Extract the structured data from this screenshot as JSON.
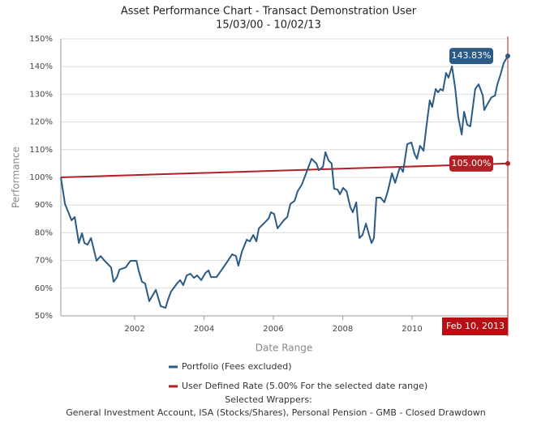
{
  "chart_data": {
    "type": "line",
    "title": "Asset Performance Chart - Transact Demonstration User",
    "subtitle": "15/03/00 - 10/02/13",
    "y_label": "Performance",
    "x_label": "Date Range",
    "crosshair_label": "Feb 10, 2013",
    "footer_title": "Selected Wrappers:",
    "footer_text": "General Investment Account, ISA (Stocks/Shares), Personal Pension - GMB - Closed Drawdown",
    "xlim": [
      1999.87,
      2012.76
    ],
    "xticks": [
      2002,
      2004,
      2006,
      2008,
      2010
    ],
    "ylim": [
      50,
      150
    ],
    "yticks": [
      {
        "value": 50,
        "label": "50%"
      },
      {
        "value": 60,
        "label": "60%"
      },
      {
        "value": 70,
        "label": "70%"
      },
      {
        "value": 80,
        "label": "80%"
      },
      {
        "value": 90,
        "label": "90%"
      },
      {
        "value": 100,
        "label": "100%"
      },
      {
        "value": 110,
        "label": "110%"
      },
      {
        "value": 120,
        "label": "120%"
      },
      {
        "value": 130,
        "label": "130%"
      },
      {
        "value": 140,
        "label": "140%"
      },
      {
        "value": 150,
        "label": "150%"
      }
    ],
    "grid": true,
    "series": [
      {
        "name": "Portfolio (Fees excluded)",
        "color": "#2b5b84",
        "end_label": "143.83%",
        "x": [
          1999.87,
          1999.99,
          2000.18,
          2000.27,
          2000.39,
          2000.48,
          2000.55,
          2000.64,
          2000.74,
          2000.9,
          2001.02,
          2001.13,
          2001.32,
          2001.39,
          2001.49,
          2001.56,
          2001.74,
          2001.88,
          2002.05,
          2002.12,
          2002.21,
          2002.3,
          2002.42,
          2002.61,
          2002.75,
          2002.89,
          2002.96,
          2003.05,
          2003.22,
          2003.31,
          2003.4,
          2003.5,
          2003.61,
          2003.71,
          2003.8,
          2003.92,
          2004.04,
          2004.13,
          2004.2,
          2004.36,
          2004.48,
          2004.64,
          2004.81,
          2004.92,
          2004.99,
          2005.09,
          2005.23,
          2005.32,
          2005.42,
          2005.51,
          2005.58,
          2005.72,
          2005.86,
          2005.93,
          2006.02,
          2006.12,
          2006.3,
          2006.4,
          2006.49,
          2006.61,
          2006.7,
          2006.82,
          2006.96,
          2007.1,
          2007.24,
          2007.31,
          2007.43,
          2007.5,
          2007.59,
          2007.68,
          2007.75,
          2007.85,
          2007.92,
          2008.01,
          2008.11,
          2008.22,
          2008.29,
          2008.39,
          2008.48,
          2008.57,
          2008.67,
          2008.76,
          2008.83,
          2008.9,
          2008.97,
          2009.09,
          2009.2,
          2009.3,
          2009.42,
          2009.51,
          2009.65,
          2009.74,
          2009.86,
          2009.98,
          2010.07,
          2010.14,
          2010.23,
          2010.33,
          2010.42,
          2010.51,
          2010.58,
          2010.68,
          2010.75,
          2010.82,
          2010.89,
          2010.98,
          2011.05,
          2011.15,
          2011.24,
          2011.33,
          2011.43,
          2011.5,
          2011.59,
          2011.68,
          2011.82,
          2011.92,
          2012.04,
          2012.08,
          2012.18,
          2012.29,
          2012.39,
          2012.46,
          2012.55,
          2012.64,
          2012.76
        ],
        "values": [
          100,
          90.4,
          84.5,
          85.7,
          76.3,
          79.8,
          76.3,
          75.7,
          78.1,
          69.9,
          71.6,
          69.9,
          67.5,
          62.3,
          64,
          66.7,
          67.5,
          69.9,
          69.9,
          66.1,
          62.3,
          61.7,
          55.3,
          59.4,
          53.5,
          52.9,
          55.8,
          58.8,
          61.7,
          62.9,
          61.1,
          64.6,
          65.2,
          63.7,
          64.6,
          62.9,
          65.5,
          66.4,
          64,
          64,
          66.1,
          69,
          72.2,
          71.6,
          68.1,
          73.1,
          77.5,
          76.9,
          79.2,
          76.9,
          81.6,
          83.3,
          85.1,
          87.4,
          86.8,
          81.6,
          84.5,
          85.7,
          90.4,
          91.5,
          95,
          97.4,
          102,
          106.7,
          105,
          102.6,
          103.8,
          109.1,
          106.1,
          105,
          95.9,
          95.6,
          93.9,
          96.2,
          95,
          89.2,
          87.4,
          91,
          78.1,
          79.2,
          83.3,
          79.2,
          76.3,
          78.1,
          92.7,
          92.7,
          91,
          95,
          101.5,
          98,
          103.8,
          102,
          112,
          112.6,
          108.5,
          106.7,
          111.4,
          109.6,
          119,
          127.8,
          125.4,
          131.9,
          130.7,
          131.9,
          131.3,
          137.7,
          136,
          140.1,
          132.5,
          121.9,
          115.5,
          123.7,
          119,
          118.4,
          131.9,
          133.6,
          129.5,
          124.3,
          126.6,
          128.9,
          129.5,
          133.6,
          137.1,
          141.2,
          143.83
        ]
      },
      {
        "name": "User Defined Rate (5.00% For the selected date range)",
        "color": "#b21f24",
        "end_label": "105.00%",
        "x": [
          1999.87,
          2012.76
        ],
        "values": [
          100,
          105
        ]
      }
    ]
  }
}
